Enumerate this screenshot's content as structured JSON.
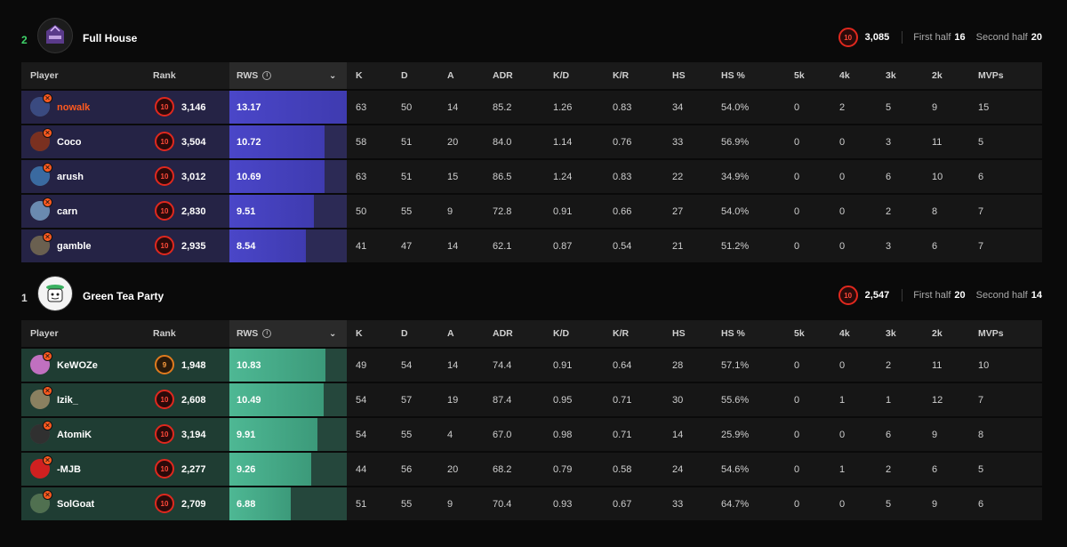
{
  "columns": {
    "player": "Player",
    "rank": "Rank",
    "rws": "RWS",
    "k": "K",
    "d": "D",
    "a": "A",
    "adr": "ADR",
    "kd": "K/D",
    "kr": "K/R",
    "hs": "HS",
    "hsp": "HS %",
    "k5": "5k",
    "k4": "4k",
    "k3": "3k",
    "k2": "2k",
    "mvps": "MVPs"
  },
  "teams": [
    {
      "position": "2",
      "name": "Full House",
      "elo_level": "10",
      "elo": "3,085",
      "first_half_label": "First half",
      "first_half": "16",
      "second_half_label": "Second half",
      "second_half": "20",
      "theme": "blue",
      "players": [
        {
          "name": "nowalk",
          "level": "10",
          "elo": "3,146",
          "rws": "13.17",
          "rws_fill": 1.0,
          "k": "63",
          "d": "50",
          "a": "14",
          "adr": "85.2",
          "kd": "1.26",
          "kr": "0.83",
          "hs": "34",
          "hsp": "54.0%",
          "k5": "0",
          "k4": "2",
          "k3": "5",
          "k2": "9",
          "mvps": "15",
          "highlight": true,
          "avatar_color": "#3a4a80"
        },
        {
          "name": "Coco",
          "level": "10",
          "elo": "3,504",
          "rws": "10.72",
          "rws_fill": 0.81,
          "k": "58",
          "d": "51",
          "a": "20",
          "adr": "84.0",
          "kd": "1.14",
          "kr": "0.76",
          "hs": "33",
          "hsp": "56.9%",
          "k5": "0",
          "k4": "0",
          "k3": "3",
          "k2": "11",
          "mvps": "5",
          "highlight": false,
          "avatar_color": "#7a3020"
        },
        {
          "name": "arush",
          "level": "10",
          "elo": "3,012",
          "rws": "10.69",
          "rws_fill": 0.81,
          "k": "63",
          "d": "51",
          "a": "15",
          "adr": "86.5",
          "kd": "1.24",
          "kr": "0.83",
          "hs": "22",
          "hsp": "34.9%",
          "k5": "0",
          "k4": "0",
          "k3": "6",
          "k2": "10",
          "mvps": "6",
          "highlight": false,
          "avatar_color": "#3a6aa0"
        },
        {
          "name": "carn",
          "level": "10",
          "elo": "2,830",
          "rws": "9.51",
          "rws_fill": 0.72,
          "k": "50",
          "d": "55",
          "a": "9",
          "adr": "72.8",
          "kd": "0.91",
          "kr": "0.66",
          "hs": "27",
          "hsp": "54.0%",
          "k5": "0",
          "k4": "0",
          "k3": "2",
          "k2": "8",
          "mvps": "7",
          "highlight": false,
          "avatar_color": "#6a8ab0"
        },
        {
          "name": "gamble",
          "level": "10",
          "elo": "2,935",
          "rws": "8.54",
          "rws_fill": 0.65,
          "k": "41",
          "d": "47",
          "a": "14",
          "adr": "62.1",
          "kd": "0.87",
          "kr": "0.54",
          "hs": "21",
          "hsp": "51.2%",
          "k5": "0",
          "k4": "0",
          "k3": "3",
          "k2": "6",
          "mvps": "7",
          "highlight": false,
          "avatar_color": "#6a6050"
        }
      ]
    },
    {
      "position": "1",
      "name": "Green Tea Party",
      "elo_level": "10",
      "elo": "2,547",
      "first_half_label": "First half",
      "first_half": "20",
      "second_half_label": "Second half",
      "second_half": "14",
      "theme": "green",
      "players": [
        {
          "name": "KeWOZe",
          "level": "9",
          "elo": "1,948",
          "rws": "10.83",
          "rws_fill": 0.82,
          "k": "49",
          "d": "54",
          "a": "14",
          "adr": "74.4",
          "kd": "0.91",
          "kr": "0.64",
          "hs": "28",
          "hsp": "57.1%",
          "k5": "0",
          "k4": "0",
          "k3": "2",
          "k2": "11",
          "mvps": "10",
          "highlight": false,
          "avatar_color": "#c070c0"
        },
        {
          "name": "Izik_",
          "level": "10",
          "elo": "2,608",
          "rws": "10.49",
          "rws_fill": 0.8,
          "k": "54",
          "d": "57",
          "a": "19",
          "adr": "87.4",
          "kd": "0.95",
          "kr": "0.71",
          "hs": "30",
          "hsp": "55.6%",
          "k5": "0",
          "k4": "1",
          "k3": "1",
          "k2": "12",
          "mvps": "7",
          "highlight": false,
          "avatar_color": "#8a8060"
        },
        {
          "name": "AtomiK",
          "level": "10",
          "elo": "3,194",
          "rws": "9.91",
          "rws_fill": 0.75,
          "k": "54",
          "d": "55",
          "a": "4",
          "adr": "67.0",
          "kd": "0.98",
          "kr": "0.71",
          "hs": "14",
          "hsp": "25.9%",
          "k5": "0",
          "k4": "0",
          "k3": "6",
          "k2": "9",
          "mvps": "8",
          "highlight": false,
          "avatar_color": "#303030"
        },
        {
          "name": "-MJB",
          "level": "10",
          "elo": "2,277",
          "rws": "9.26",
          "rws_fill": 0.7,
          "k": "44",
          "d": "56",
          "a": "20",
          "adr": "68.2",
          "kd": "0.79",
          "kr": "0.58",
          "hs": "24",
          "hsp": "54.6%",
          "k5": "0",
          "k4": "1",
          "k3": "2",
          "k2": "6",
          "mvps": "5",
          "highlight": false,
          "avatar_color": "#d02020"
        },
        {
          "name": "SolGoat",
          "level": "10",
          "elo": "2,709",
          "rws": "6.88",
          "rws_fill": 0.52,
          "k": "51",
          "d": "55",
          "a": "9",
          "adr": "70.4",
          "kd": "0.93",
          "kr": "0.67",
          "hs": "33",
          "hsp": "64.7%",
          "k5": "0",
          "k4": "0",
          "k3": "5",
          "k2": "9",
          "mvps": "6",
          "highlight": false,
          "avatar_color": "#507050"
        }
      ]
    }
  ]
}
